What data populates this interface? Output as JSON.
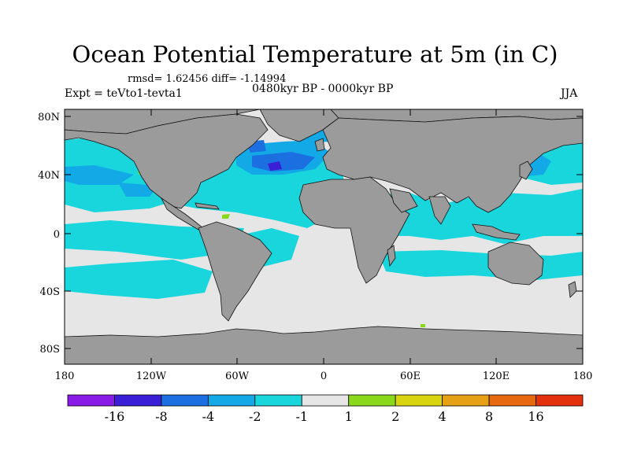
{
  "title": "Ocean Potential Temperature at 5m (in C)",
  "stats": "rmsd= 1.62456 diff= -1.14994",
  "period": "0480kyr BP - 0000kyr BP",
  "experiment": "Expt = teVto1-tevta1",
  "season": "JJA",
  "axes": {
    "lat_labels": [
      "80N",
      "40N",
      "0",
      "40S",
      "80S"
    ],
    "lon_labels": [
      "180",
      "120W",
      "60W",
      "0",
      "60E",
      "120E",
      "180"
    ]
  },
  "legend": {
    "labels": [
      "-16",
      "-8",
      "-4",
      "-2",
      "-1",
      "1",
      "2",
      "4",
      "8",
      "16"
    ],
    "colors": [
      "#8a1be6",
      "#3a1fd6",
      "#1c6fe0",
      "#13a9e6",
      "#19d6dc",
      "#e6e6e6",
      "#8ad81a",
      "#d8d40f",
      "#e6a015",
      "#e6680f",
      "#e3300d"
    ]
  },
  "map_colors": {
    "land": "#9b9b9b",
    "ocean_neutral": "#e6e6e6",
    "cool_light": "#19d6dc",
    "cool_medium": "#13a9e6",
    "cool_strong": "#1c6fe0",
    "cool_extreme": "#3a1fd6",
    "warm_light": "#8ad81a"
  }
}
